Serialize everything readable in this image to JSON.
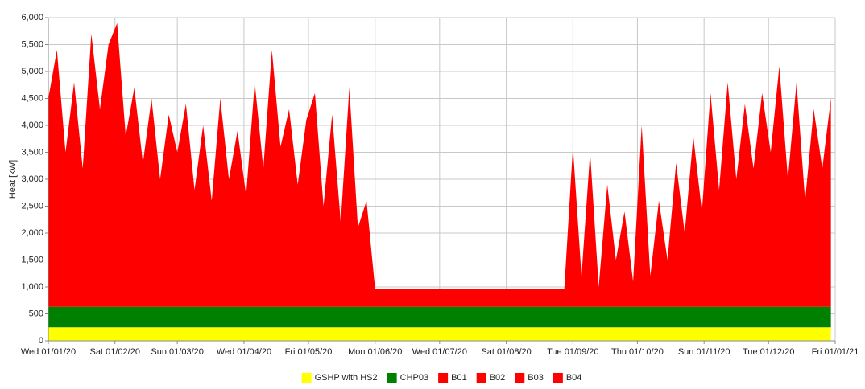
{
  "chart_data": {
    "type": "stacked_area",
    "ylabel": "Heat [kW]",
    "xlim": [
      "2020-01-01",
      "2021-01-01"
    ],
    "xticks": [
      {
        "value": "2020-01-01",
        "label": "Wed 01/01/20"
      },
      {
        "value": "2020-02-01",
        "label": "Sat 01/02/20"
      },
      {
        "value": "2020-03-01",
        "label": "Sun 01/03/20"
      },
      {
        "value": "2020-04-01",
        "label": "Wed 01/04/20"
      },
      {
        "value": "2020-05-01",
        "label": "Fri 01/05/20"
      },
      {
        "value": "2020-06-01",
        "label": "Mon 01/06/20"
      },
      {
        "value": "2020-07-01",
        "label": "Wed 01/07/20"
      },
      {
        "value": "2020-08-01",
        "label": "Sat 01/08/20"
      },
      {
        "value": "2020-09-01",
        "label": "Tue 01/09/20"
      },
      {
        "value": "2020-10-01",
        "label": "Thu 01/10/20"
      },
      {
        "value": "2020-11-01",
        "label": "Sun 01/11/20"
      },
      {
        "value": "2020-12-01",
        "label": "Tue 01/12/20"
      },
      {
        "value": "2021-01-01",
        "label": "Fri 01/01/21"
      }
    ],
    "ylim": [
      0,
      6000
    ],
    "yticks": [
      0,
      500,
      {
        "value": 1000,
        "label": "1,000"
      },
      {
        "value": 1500,
        "label": "1,500"
      },
      {
        "value": 2000,
        "label": "2,000"
      },
      {
        "value": 2500,
        "label": "2,500"
      },
      {
        "value": 3000,
        "label": "3,000"
      },
      {
        "value": 3500,
        "label": "3,500"
      },
      {
        "value": 4000,
        "label": "4,000"
      },
      {
        "value": 4500,
        "label": "4,500"
      },
      {
        "value": 5000,
        "label": "5,000"
      },
      {
        "value": 5500,
        "label": "5,500"
      },
      {
        "value": 6000,
        "label": "6,000"
      }
    ],
    "grid": true,
    "legend": "bottom",
    "x": [
      "2020-01-01",
      "2020-01-05",
      "2020-01-09",
      "2020-01-13",
      "2020-01-17",
      "2020-01-21",
      "2020-01-25",
      "2020-01-29",
      "2020-02-02",
      "2020-02-06",
      "2020-02-10",
      "2020-02-14",
      "2020-02-18",
      "2020-02-22",
      "2020-02-26",
      "2020-03-01",
      "2020-03-05",
      "2020-03-09",
      "2020-03-13",
      "2020-03-17",
      "2020-03-21",
      "2020-03-25",
      "2020-03-29",
      "2020-04-02",
      "2020-04-06",
      "2020-04-10",
      "2020-04-14",
      "2020-04-18",
      "2020-04-22",
      "2020-04-26",
      "2020-04-30",
      "2020-05-04",
      "2020-05-08",
      "2020-05-12",
      "2020-05-16",
      "2020-05-20",
      "2020-05-24",
      "2020-05-28",
      "2020-06-01",
      "2020-06-05",
      "2020-06-09",
      "2020-06-13",
      "2020-06-17",
      "2020-06-21",
      "2020-06-25",
      "2020-06-29",
      "2020-07-03",
      "2020-07-07",
      "2020-07-11",
      "2020-07-15",
      "2020-07-19",
      "2020-07-23",
      "2020-07-27",
      "2020-07-31",
      "2020-08-04",
      "2020-08-08",
      "2020-08-12",
      "2020-08-16",
      "2020-08-20",
      "2020-08-24",
      "2020-08-28",
      "2020-09-01",
      "2020-09-05",
      "2020-09-09",
      "2020-09-13",
      "2020-09-17",
      "2020-09-21",
      "2020-09-25",
      "2020-09-29",
      "2020-10-03",
      "2020-10-07",
      "2020-10-11",
      "2020-10-15",
      "2020-10-19",
      "2020-10-23",
      "2020-10-27",
      "2020-10-31",
      "2020-11-04",
      "2020-11-08",
      "2020-11-12",
      "2020-11-16",
      "2020-11-20",
      "2020-11-24",
      "2020-11-28",
      "2020-12-02",
      "2020-12-06",
      "2020-12-10",
      "2020-12-14",
      "2020-12-18",
      "2020-12-22",
      "2020-12-26",
      "2020-12-30"
    ],
    "series": [
      {
        "name": "GSHP with HS2",
        "color": "#ffff00",
        "values": [
          250,
          250,
          250,
          250,
          250,
          250,
          250,
          250,
          250,
          250,
          250,
          250,
          250,
          250,
          250,
          250,
          250,
          250,
          250,
          250,
          250,
          250,
          250,
          250,
          250,
          250,
          250,
          250,
          250,
          250,
          250,
          250,
          250,
          250,
          250,
          250,
          250,
          250,
          250,
          250,
          250,
          250,
          250,
          250,
          250,
          250,
          250,
          250,
          250,
          250,
          250,
          250,
          250,
          250,
          250,
          250,
          250,
          250,
          250,
          250,
          250,
          250,
          250,
          250,
          250,
          250,
          250,
          250,
          250,
          250,
          250,
          250,
          250,
          250,
          250,
          250,
          250,
          250,
          250,
          250,
          250,
          250,
          250,
          250,
          250,
          250,
          250,
          250,
          250,
          250,
          250,
          250
        ]
      },
      {
        "name": "CHP03",
        "color": "#008000",
        "values": [
          380,
          380,
          380,
          380,
          380,
          380,
          380,
          380,
          380,
          380,
          380,
          380,
          380,
          380,
          380,
          380,
          380,
          380,
          380,
          380,
          380,
          380,
          380,
          380,
          380,
          380,
          380,
          380,
          380,
          380,
          380,
          380,
          380,
          380,
          380,
          380,
          380,
          380,
          380,
          380,
          380,
          380,
          380,
          380,
          380,
          380,
          380,
          380,
          380,
          380,
          380,
          380,
          380,
          380,
          380,
          380,
          380,
          380,
          380,
          380,
          380,
          380,
          380,
          380,
          380,
          380,
          380,
          380,
          380,
          380,
          380,
          380,
          380,
          380,
          380,
          380,
          380,
          380,
          380,
          380,
          380,
          380,
          380,
          380,
          380,
          380,
          380,
          380,
          380,
          380,
          380,
          380
        ]
      },
      {
        "name": "B01",
        "color": "#ff0000",
        "values": [
          3870,
          4770,
          2870,
          4170,
          2570,
          5070,
          3670,
          4870,
          5270,
          3170,
          4070,
          2670,
          3870,
          2370,
          3570,
          2870,
          3770,
          2170,
          3370,
          1970,
          3870,
          2370,
          3270,
          2070,
          4170,
          2570,
          4770,
          2970,
          3670,
          2270,
          3470,
          3970,
          1870,
          3570,
          1570,
          4070,
          1470,
          1970,
          330,
          330,
          330,
          330,
          330,
          330,
          330,
          330,
          330,
          330,
          330,
          330,
          330,
          330,
          330,
          330,
          330,
          330,
          330,
          330,
          330,
          330,
          330,
          2970,
          570,
          2870,
          370,
          2270,
          870,
          1770,
          470,
          3370,
          570,
          1970,
          870,
          2670,
          1370,
          3170,
          1770,
          3970,
          2170,
          4170,
          2370,
          3770,
          2570,
          3970,
          2870,
          4470,
          2370,
          4170,
          1970,
          3670,
          2570,
          3870
        ]
      },
      {
        "name": "B02",
        "color": "#ff0000",
        "values": [
          0,
          0,
          0,
          0,
          0,
          0,
          0,
          0,
          0,
          0,
          0,
          0,
          0,
          0,
          0,
          0,
          0,
          0,
          0,
          0,
          0,
          0,
          0,
          0,
          0,
          0,
          0,
          0,
          0,
          0,
          0,
          0,
          0,
          0,
          0,
          0,
          0,
          0,
          0,
          0,
          0,
          0,
          0,
          0,
          0,
          0,
          0,
          0,
          0,
          0,
          0,
          0,
          0,
          0,
          0,
          0,
          0,
          0,
          0,
          0,
          0,
          0,
          0,
          0,
          0,
          0,
          0,
          0,
          0,
          0,
          0,
          0,
          0,
          0,
          0,
          0,
          0,
          0,
          0,
          0,
          0,
          0,
          0,
          0,
          0,
          0,
          0,
          0,
          0,
          0,
          0,
          0
        ]
      },
      {
        "name": "B03",
        "color": "#ff0000",
        "values": [
          0,
          0,
          0,
          0,
          0,
          0,
          0,
          0,
          0,
          0,
          0,
          0,
          0,
          0,
          0,
          0,
          0,
          0,
          0,
          0,
          0,
          0,
          0,
          0,
          0,
          0,
          0,
          0,
          0,
          0,
          0,
          0,
          0,
          0,
          0,
          0,
          0,
          0,
          0,
          0,
          0,
          0,
          0,
          0,
          0,
          0,
          0,
          0,
          0,
          0,
          0,
          0,
          0,
          0,
          0,
          0,
          0,
          0,
          0,
          0,
          0,
          0,
          0,
          0,
          0,
          0,
          0,
          0,
          0,
          0,
          0,
          0,
          0,
          0,
          0,
          0,
          0,
          0,
          0,
          0,
          0,
          0,
          0,
          0,
          0,
          0,
          0,
          0,
          0,
          0,
          0,
          0
        ]
      },
      {
        "name": "B04",
        "color": "#ff0000",
        "values": [
          0,
          0,
          0,
          0,
          0,
          0,
          0,
          0,
          0,
          0,
          0,
          0,
          0,
          0,
          0,
          0,
          0,
          0,
          0,
          0,
          0,
          0,
          0,
          0,
          0,
          0,
          0,
          0,
          0,
          0,
          0,
          0,
          0,
          0,
          0,
          0,
          0,
          0,
          0,
          0,
          0,
          0,
          0,
          0,
          0,
          0,
          0,
          0,
          0,
          0,
          0,
          0,
          0,
          0,
          0,
          0,
          0,
          0,
          0,
          0,
          0,
          0,
          0,
          0,
          0,
          0,
          0,
          0,
          0,
          0,
          0,
          0,
          0,
          0,
          0,
          0,
          0,
          0,
          0,
          0,
          0,
          0,
          0,
          0,
          0,
          0,
          0,
          0,
          0,
          0,
          0,
          0
        ]
      }
    ]
  }
}
